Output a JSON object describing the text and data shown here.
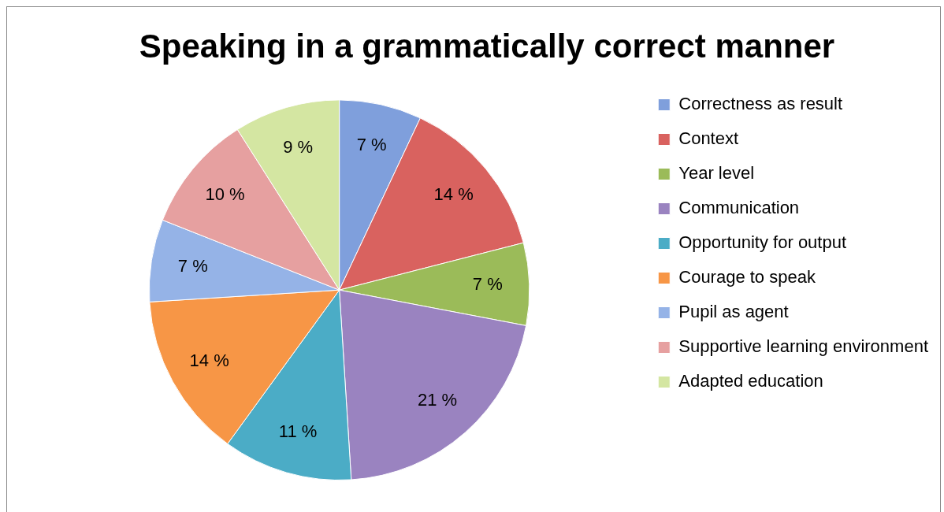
{
  "chart_data": {
    "type": "pie",
    "title": "Speaking in a grammatically correct manner",
    "categories": [
      "Correctness as result",
      "Context",
      "Year level",
      "Communication",
      "Opportunity for output",
      "Courage to speak",
      "Pupil as agent",
      "Supportive learning environment",
      "Adapted education"
    ],
    "values": [
      7,
      14,
      7,
      21,
      11,
      14,
      7,
      10,
      9
    ],
    "value_labels": [
      "7 %",
      "14 %",
      "7 %",
      "21 %",
      "11 %",
      "14 %",
      "7 %",
      "10 %",
      "9 %"
    ],
    "colors": [
      "#7f9fdc",
      "#d9625f",
      "#9bbb59",
      "#9a83c0",
      "#4bacc6",
      "#f79646",
      "#95b3e7",
      "#e6a0a0",
      "#d4e6a2"
    ],
    "legend": "right"
  }
}
